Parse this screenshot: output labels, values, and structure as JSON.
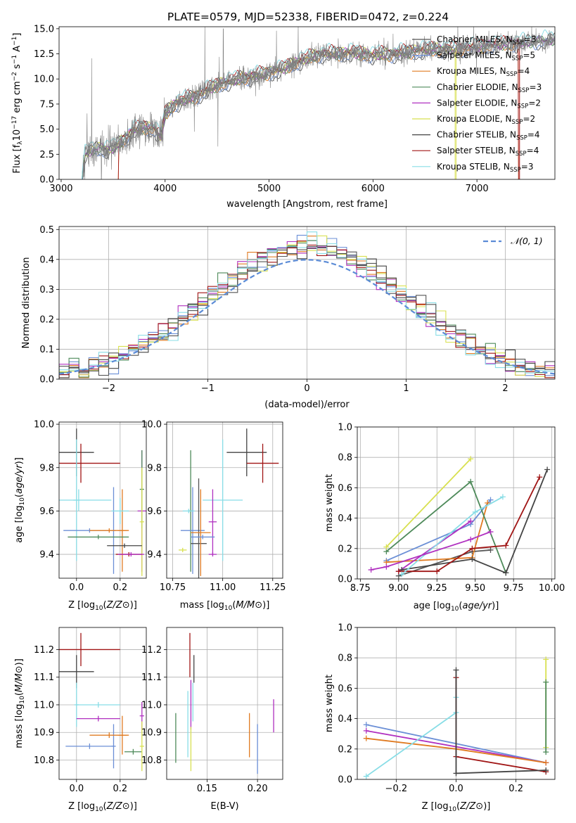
{
  "title": "PLATE=0579, MJD=52338, FIBERID=0472, z=0.224",
  "models": [
    {
      "label": "Chabrier MILES, N",
      "sub": "SSP",
      "n": "=3",
      "color": "#555555"
    },
    {
      "label": "Salpeter MILES, N",
      "sub": "SSP",
      "n": "=5",
      "color": "#6b8fd6"
    },
    {
      "label": "Kroupa MILES, N",
      "sub": "SSP",
      "n": "=4",
      "color": "#e07b22"
    },
    {
      "label": "Chabrier ELODIE, N",
      "sub": "SSP",
      "n": "=3",
      "color": "#4e8a5a"
    },
    {
      "label": "Salpeter ELODIE, N",
      "sub": "SSP",
      "n": "=2",
      "color": "#b030c0"
    },
    {
      "label": "Kroupa ELODIE, N",
      "sub": "SSP",
      "n": "=2",
      "color": "#d8e050"
    },
    {
      "label": "Chabrier STELIB, N",
      "sub": "SSP",
      "n": "=4",
      "color": "#444444"
    },
    {
      "label": "Salpeter STELIB, N",
      "sub": "SSP",
      "n": "=4",
      "color": "#a01515"
    },
    {
      "label": "Kroupa STELIB, N",
      "sub": "SSP",
      "n": "=3",
      "color": "#88dde6"
    }
  ],
  "chart_data": [
    {
      "id": "spectrum",
      "type": "line",
      "xlabel": "wavelength [Angstrom, rest frame]",
      "ylabel_parts": [
        "Flux [f",
        "λ",
        "10",
        "−17",
        " erg cm",
        "−2",
        " s",
        "−1",
        " A",
        "−1",
        "]"
      ],
      "xlim": [
        2980,
        7750
      ],
      "ylim": [
        0,
        15.2
      ],
      "xticks": [
        3000,
        4000,
        5000,
        6000,
        7000
      ],
      "yticks": [
        0.0,
        2.5,
        5.0,
        7.5,
        10.0,
        12.5,
        15.0
      ],
      "ytick_labels": [
        "0.0",
        "2.5",
        "5.0",
        "7.5",
        "10.0",
        "12.5",
        "15.0"
      ],
      "continuum": [
        [
          3200,
          0
        ],
        [
          3230,
          2.5
        ],
        [
          3300,
          3.0
        ],
        [
          3500,
          3.1
        ],
        [
          3600,
          4.0
        ],
        [
          3700,
          4.9
        ],
        [
          3800,
          5.2
        ],
        [
          3900,
          5.0
        ],
        [
          3960,
          4.2
        ],
        [
          4000,
          6.5
        ],
        [
          4100,
          7.6
        ],
        [
          4300,
          8.3
        ],
        [
          4500,
          9.4
        ],
        [
          4700,
          10.0
        ],
        [
          4900,
          10.4
        ],
        [
          5100,
          10.9
        ],
        [
          5300,
          11.8
        ],
        [
          5500,
          12.5
        ],
        [
          5800,
          12.6
        ],
        [
          6000,
          12.4
        ],
        [
          6200,
          12.5
        ],
        [
          6500,
          12.9
        ],
        [
          6800,
          13.0
        ],
        [
          7000,
          13.2
        ],
        [
          7300,
          13.5
        ],
        [
          7500,
          13.7
        ],
        [
          7750,
          14.0
        ]
      ],
      "observed_color": "#808080"
    },
    {
      "id": "residuals",
      "type": "histogram",
      "xlabel": "(data-model)/error",
      "ylabel": "Normed distribution",
      "xlim": [
        -2.5,
        2.5
      ],
      "ylim": [
        0,
        0.51
      ],
      "xticks": [
        -2,
        -1,
        0,
        1,
        2
      ],
      "xtick_labels": [
        "−2",
        "−1",
        "0",
        "1",
        "2"
      ],
      "yticks": [
        0.0,
        0.1,
        0.2,
        0.3,
        0.4,
        0.5
      ],
      "ytick_labels": [
        "0.0",
        "0.1",
        "0.2",
        "0.3",
        "0.4",
        "0.5"
      ],
      "bin_width": 0.1,
      "reference_label": "𝒩(0, 1)",
      "reference_color": "#5b8bd6"
    },
    {
      "id": "age-vs-Z",
      "type": "errorbar",
      "xlabel": "Z [log10(Z/Z⊙)]",
      "ylabel": "age  [log10(age/yr)]",
      "xlim": [
        -0.08,
        0.32
      ],
      "ylim": [
        9.29,
        10.01
      ],
      "xticks": [
        0.0,
        0.2
      ],
      "xtick_labels": [
        "0.0",
        "0.2"
      ],
      "yticks": [
        9.4,
        9.6,
        9.8,
        10.0
      ],
      "ytick_labels": [
        "9.4",
        "9.6",
        "9.8",
        "10.0"
      ],
      "points": [
        {
          "m": 6,
          "x": 0.0,
          "xerr": 0.08,
          "y": 9.87,
          "yerr": 0.11
        },
        {
          "m": 7,
          "x": 0.02,
          "xerr": 0.18,
          "y": 9.82,
          "yerr": 0.09
        },
        {
          "m": 8,
          "x": 0.0,
          "xerr": 0.015,
          "y": 9.65,
          "yerr": 0.28
        },
        {
          "m": 8,
          "x": 0.01,
          "xerr": 0.15,
          "y": 9.65,
          "yerr": 0.05
        },
        {
          "m": 1,
          "x": 0.17,
          "xerr": 0.01,
          "y": 9.51,
          "yerr": 0.2
        },
        {
          "m": 1,
          "x": 0.06,
          "xerr": 0.12,
          "y": 9.51,
          "yerr": 0.01
        },
        {
          "m": 2,
          "x": 0.21,
          "xerr": 0.02,
          "y": 9.51,
          "yerr": 0.19
        },
        {
          "m": 2,
          "x": 0.15,
          "xerr": 0.09,
          "y": 9.51,
          "yerr": 0.01
        },
        {
          "m": 4,
          "x": 0.3,
          "xerr": 0.02,
          "y": 9.6,
          "yerr": 0.28
        },
        {
          "m": 3,
          "x": 0.3,
          "xerr": 0.01,
          "y": 9.7,
          "yerr": 0.18
        },
        {
          "m": 5,
          "x": 0.3,
          "xerr": 0.01,
          "y": 9.55,
          "yerr": 0.25
        },
        {
          "m": 6,
          "x": 0.22,
          "xerr": 0.08,
          "y": 9.44,
          "yerr": 0.01
        },
        {
          "m": 7,
          "x": 0.24,
          "xerr": 0.06,
          "y": 9.4,
          "yerr": 0.01
        },
        {
          "m": 4,
          "x": 0.25,
          "xerr": 0.06,
          "y": 9.4,
          "yerr": 0.01
        },
        {
          "m": 8,
          "x": 0.2,
          "xerr": 0.04,
          "y": 9.6,
          "yerr": 0.06
        },
        {
          "m": 3,
          "x": 0.1,
          "xerr": 0.14,
          "y": 9.48,
          "yerr": 0.01
        }
      ]
    },
    {
      "id": "age-vs-mass",
      "type": "errorbar",
      "xlabel": "mass [log10(M/M⊙)]",
      "ylabel": "",
      "xlim": [
        10.72,
        11.3
      ],
      "ylim": [
        9.29,
        10.01
      ],
      "xticks": [
        10.75,
        11.0,
        11.25
      ],
      "xtick_labels": [
        "10.75",
        "11.00",
        "11.25"
      ],
      "yticks": [
        9.4,
        9.6,
        9.8,
        10.0
      ],
      "ytick_labels": [
        "9.4",
        "9.6",
        "9.8",
        "10.0"
      ],
      "points": [
        {
          "m": 6,
          "x": 11.12,
          "xerr": 0.1,
          "y": 9.87,
          "yerr": 0.11
        },
        {
          "m": 7,
          "x": 11.2,
          "xerr": 0.08,
          "y": 9.82,
          "yerr": 0.09
        },
        {
          "m": 8,
          "x": 11.0,
          "xerr": 0.1,
          "y": 9.65,
          "yerr": 0.28
        },
        {
          "m": 3,
          "x": 10.84,
          "xerr": 0.01,
          "y": 9.6,
          "yerr": 0.28
        },
        {
          "m": 1,
          "x": 10.85,
          "xerr": 0.06,
          "y": 9.51,
          "yerr": 0.2
        },
        {
          "m": 0,
          "x": 10.88,
          "xerr": 0.04,
          "y": 9.45,
          "yerr": 0.3
        },
        {
          "m": 2,
          "x": 10.89,
          "xerr": 0.05,
          "y": 9.5,
          "yerr": 0.2
        },
        {
          "m": 5,
          "x": 10.8,
          "xerr": 0.02,
          "y": 9.42,
          "yerr": 0.01
        },
        {
          "m": 4,
          "x": 10.95,
          "xerr": 0.02,
          "y": 9.55,
          "yerr": 0.15
        },
        {
          "m": 4,
          "x": 10.95,
          "xerr": 0.02,
          "y": 9.4,
          "yerr": 0.01
        },
        {
          "m": 8,
          "x": 10.83,
          "xerr": 0.03,
          "y": 9.6,
          "yerr": 0.01
        },
        {
          "m": 1,
          "x": 10.9,
          "xerr": 0.06,
          "y": 9.48,
          "yerr": 0.01
        }
      ]
    },
    {
      "id": "massweight-vs-age",
      "type": "line",
      "xlabel": "age  [log10(age/yr)]",
      "ylabel": "mass weight",
      "xlim": [
        8.73,
        10.02
      ],
      "ylim": [
        0,
        1.0
      ],
      "xticks": [
        8.75,
        9.0,
        9.25,
        9.5,
        9.75,
        10.0
      ],
      "xtick_labels": [
        "8.75",
        "9.00",
        "9.25",
        "9.50",
        "9.75",
        "10.00"
      ],
      "yticks": [
        0.0,
        0.2,
        0.4,
        0.6,
        0.8,
        1.0
      ],
      "ytick_labels": [
        "0.0",
        "0.2",
        "0.4",
        "0.6",
        "0.8",
        "1.0"
      ],
      "series": [
        {
          "m": 0,
          "x": [
            9.0,
            9.48,
            9.6
          ],
          "y": [
            0.02,
            0.18,
            0.19
          ]
        },
        {
          "m": 1,
          "x": [
            8.92,
            9.47,
            9.6
          ],
          "y": [
            0.12,
            0.36,
            0.52
          ]
        },
        {
          "m": 2,
          "x": [
            8.92,
            9.48,
            9.58
          ],
          "y": [
            0.11,
            0.14,
            0.5
          ]
        },
        {
          "m": 3,
          "x": [
            8.92,
            9.47,
            9.7
          ],
          "y": [
            0.18,
            0.64,
            0.04
          ]
        },
        {
          "m": 4,
          "x": [
            9.0,
            9.47
          ],
          "y": [
            0.05,
            0.38
          ]
        },
        {
          "m": 5,
          "x": [
            8.92,
            9.47
          ],
          "y": [
            0.21,
            0.79
          ]
        },
        {
          "m": 6,
          "x": [
            9.02,
            9.48,
            9.7,
            9.97
          ],
          "y": [
            0.06,
            0.13,
            0.04,
            0.72
          ]
        },
        {
          "m": 7,
          "x": [
            9.0,
            9.25,
            9.48,
            9.7,
            9.92
          ],
          "y": [
            0.05,
            0.05,
            0.2,
            0.22,
            0.67
          ]
        },
        {
          "m": 8,
          "x": [
            9.02,
            9.5,
            9.68
          ],
          "y": [
            0.03,
            0.44,
            0.54
          ]
        },
        {
          "m": 4,
          "x": [
            8.82,
            8.92,
            9.47,
            9.6
          ],
          "y": [
            0.06,
            0.08,
            0.26,
            0.31
          ]
        }
      ]
    },
    {
      "id": "mass-vs-Z",
      "type": "errorbar",
      "xlabel": "Z [log10(Z/Z⊙)]",
      "ylabel": "mass [log10(M/M⊙)]",
      "xlim": [
        -0.08,
        0.32
      ],
      "ylim": [
        10.73,
        11.28
      ],
      "xticks": [
        0.0,
        0.2
      ],
      "xtick_labels": [
        "0.0",
        "0.2"
      ],
      "yticks": [
        10.8,
        10.9,
        11.0,
        11.1,
        11.2
      ],
      "ytick_labels": [
        "10.8",
        "10.9",
        "11.0",
        "11.1",
        "11.2"
      ],
      "points": [
        {
          "m": 7,
          "x": 0.02,
          "xerr": 0.18,
          "y": 11.2,
          "yerr": 0.06
        },
        {
          "m": 6,
          "x": 0.0,
          "xerr": 0.08,
          "y": 11.12,
          "yerr": 0.06
        },
        {
          "m": 8,
          "x": 0.0,
          "xerr": 0.01,
          "y": 11.0,
          "yerr": 0.08
        },
        {
          "m": 8,
          "x": 0.1,
          "xerr": 0.1,
          "y": 11.0,
          "yerr": 0.01
        },
        {
          "m": 4,
          "x": 0.1,
          "xerr": 0.1,
          "y": 10.95,
          "yerr": 0.01
        },
        {
          "m": 4,
          "x": 0.3,
          "xerr": 0.01,
          "y": 10.96,
          "yerr": 0.05
        },
        {
          "m": 1,
          "x": 0.17,
          "xerr": 0.01,
          "y": 10.85,
          "yerr": 0.08
        },
        {
          "m": 1,
          "x": 0.06,
          "xerr": 0.11,
          "y": 10.85,
          "yerr": 0.01
        },
        {
          "m": 2,
          "x": 0.21,
          "xerr": 0.02,
          "y": 10.89,
          "yerr": 0.07
        },
        {
          "m": 2,
          "x": 0.15,
          "xerr": 0.09,
          "y": 10.89,
          "yerr": 0.01
        },
        {
          "m": 3,
          "x": 0.26,
          "xerr": 0.04,
          "y": 10.83,
          "yerr": 0.01
        },
        {
          "m": 5,
          "x": 0.3,
          "xerr": 0.01,
          "y": 10.85,
          "yerr": 0.09
        }
      ]
    },
    {
      "id": "mass-vs-ebv",
      "type": "errorbar",
      "xlabel": "E(B-V)",
      "ylabel": "",
      "xlim": [
        0.11,
        0.225
      ],
      "ylim": [
        10.73,
        11.28
      ],
      "xticks": [
        0.15,
        0.2
      ],
      "xtick_labels": [
        "0.15",
        "0.20"
      ],
      "yticks": [
        10.8,
        10.9,
        11.0,
        11.1,
        11.2
      ],
      "ytick_labels": [
        "10.8",
        "10.9",
        "11.0",
        "11.1",
        "11.2"
      ],
      "points": [
        {
          "m": 3,
          "x": 0.119,
          "xerr": 0,
          "y": 10.88,
          "yerr": 0.09
        },
        {
          "m": 8,
          "x": 0.131,
          "xerr": 0,
          "y": 10.93,
          "yerr": 0.12
        },
        {
          "m": 7,
          "x": 0.133,
          "xerr": 0,
          "y": 11.18,
          "yerr": 0.08
        },
        {
          "m": 6,
          "x": 0.137,
          "xerr": 0,
          "y": 11.13,
          "yerr": 0.05
        },
        {
          "m": 4,
          "x": 0.134,
          "xerr": 0,
          "y": 11.0,
          "yerr": 0.09
        },
        {
          "m": 8,
          "x": 0.136,
          "xerr": 0,
          "y": 11.01,
          "yerr": 0.07
        },
        {
          "m": 5,
          "x": 0.134,
          "xerr": 0,
          "y": 10.84,
          "yerr": 0.08
        },
        {
          "m": 2,
          "x": 0.192,
          "xerr": 0,
          "y": 10.89,
          "yerr": 0.08
        },
        {
          "m": 1,
          "x": 0.2,
          "xerr": 0,
          "y": 10.84,
          "yerr": 0.09
        },
        {
          "m": 4,
          "x": 0.216,
          "xerr": 0,
          "y": 10.96,
          "yerr": 0.06
        }
      ]
    },
    {
      "id": "massweight-vs-Z",
      "type": "line",
      "xlabel": "Z [log10(Z/Z⊙)]",
      "ylabel": "mass weight",
      "xlim": [
        -0.33,
        0.33
      ],
      "ylim": [
        0,
        1.0
      ],
      "xticks": [
        -0.2,
        0.0,
        0.2
      ],
      "xtick_labels": [
        "−0.2",
        "0.0",
        "0.2"
      ],
      "yticks": [
        0.0,
        0.2,
        0.4,
        0.6,
        0.8,
        1.0
      ],
      "ytick_labels": [
        "0.0",
        "0.2",
        "0.4",
        "0.6",
        "0.8",
        "1.0"
      ],
      "series": [
        {
          "m": 1,
          "x": [
            -0.3,
            0.3
          ],
          "y": [
            0.36,
            0.11
          ]
        },
        {
          "m": 4,
          "x": [
            -0.3,
            0.3
          ],
          "y": [
            0.32,
            0.11
          ]
        },
        {
          "m": 2,
          "x": [
            -0.3,
            0.0,
            0.3
          ],
          "y": [
            0.27,
            0.2,
            0.11
          ]
        },
        {
          "m": 8,
          "x": [
            -0.3,
            0.0,
            0.0
          ],
          "y": [
            0.02,
            0.44,
            0.54
          ]
        },
        {
          "m": 7,
          "x": [
            0.0,
            0.0,
            0.3
          ],
          "y": [
            0.67,
            0.15,
            0.05
          ]
        },
        {
          "m": 6,
          "x": [
            0.0,
            0.0,
            0.3
          ],
          "y": [
            0.72,
            0.04,
            0.06
          ]
        },
        {
          "m": 5,
          "x": [
            0.3,
            0.3
          ],
          "y": [
            0.21,
            0.79
          ]
        },
        {
          "m": 3,
          "x": [
            0.3,
            0.3
          ],
          "y": [
            0.18,
            0.64
          ]
        }
      ]
    }
  ]
}
